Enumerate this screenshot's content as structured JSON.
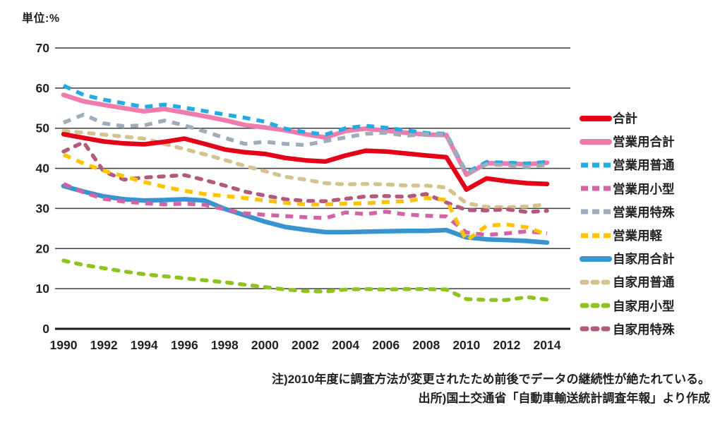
{
  "chart_data": {
    "type": "line",
    "unit_label": "単位:%",
    "x_years": [
      1990,
      1991,
      1992,
      1993,
      1994,
      1995,
      1996,
      1997,
      1998,
      1999,
      2000,
      2001,
      2002,
      2003,
      2004,
      2005,
      2006,
      2007,
      2008,
      2009,
      2010,
      2011,
      2012,
      2013,
      2014
    ],
    "x_tick_labels": [
      "1990",
      "1992",
      "1994",
      "1996",
      "1998",
      "2000",
      "2002",
      "2004",
      "2006",
      "2008",
      "2010",
      "2012",
      "2014"
    ],
    "ylim": [
      0,
      70
    ],
    "yticks": [
      0,
      10,
      20,
      30,
      40,
      50,
      60,
      70
    ],
    "grid": "horizontal",
    "legend_position": "right",
    "axis_color": "#231f20",
    "series": [
      {
        "name": "合計",
        "color": "#e50019",
        "line": "solid",
        "values": [
          48.5,
          47.6,
          46.7,
          46.2,
          46.0,
          46.6,
          47.4,
          46.1,
          44.7,
          44.0,
          43.6,
          42.6,
          42.0,
          41.7,
          43.2,
          44.4,
          44.2,
          43.7,
          43.2,
          42.8,
          34.7,
          37.5,
          36.8,
          36.3,
          36.1
        ]
      },
      {
        "name": "営業用合計",
        "color": "#f07cab",
        "line": "solid",
        "values": [
          58.3,
          56.7,
          55.8,
          55.0,
          54.2,
          54.8,
          53.9,
          53.0,
          52.0,
          50.8,
          50.2,
          49.5,
          48.5,
          47.7,
          49.3,
          49.9,
          49.4,
          48.9,
          48.4,
          48.3,
          38.4,
          41.3,
          41.2,
          41.0,
          41.4
        ]
      },
      {
        "name": "営業用普通",
        "color": "#23ace2",
        "line": "dash",
        "values": [
          60.6,
          58.3,
          57.1,
          56.2,
          55.3,
          55.9,
          55.1,
          54.3,
          53.4,
          52.6,
          51.6,
          49.9,
          49.0,
          48.4,
          50.0,
          50.6,
          50.1,
          49.5,
          48.8,
          48.6,
          38.9,
          41.6,
          41.4,
          41.2,
          41.6
        ]
      },
      {
        "name": "営業用小型",
        "color": "#d264a5",
        "line": "dash",
        "values": [
          36.1,
          34.0,
          32.4,
          31.7,
          31.3,
          31.0,
          31.2,
          30.9,
          29.8,
          28.8,
          28.4,
          28.1,
          27.8,
          27.6,
          29.0,
          28.6,
          29.2,
          28.5,
          28.2,
          28.0,
          24.0,
          23.4,
          23.8,
          24.3,
          23.8
        ]
      },
      {
        "name": "営業用特殊",
        "color": "#9fadbb",
        "line": "dash",
        "values": [
          51.4,
          53.4,
          51.2,
          50.5,
          50.7,
          51.9,
          50.7,
          49.2,
          47.6,
          46.1,
          46.6,
          46.1,
          45.8,
          46.8,
          47.7,
          48.6,
          48.9,
          48.1,
          48.6,
          48.4,
          38.7,
          41.0,
          40.8,
          40.4,
          40.9
        ]
      },
      {
        "name": "営業用軽",
        "color": "#ffc400",
        "line": "dash",
        "values": [
          43.4,
          41.2,
          39.4,
          38.0,
          36.6,
          35.4,
          34.4,
          33.6,
          33.1,
          32.6,
          32.0,
          31.4,
          31.0,
          31.0,
          31.2,
          31.3,
          31.6,
          31.8,
          32.6,
          32.1,
          22.0,
          25.7,
          26.0,
          25.3,
          23.5
        ]
      },
      {
        "name": "自家用合計",
        "color": "#3794d0",
        "line": "solid",
        "values": [
          35.6,
          34.2,
          33.0,
          32.3,
          32.0,
          32.1,
          32.3,
          32.0,
          29.9,
          28.3,
          26.7,
          25.4,
          24.7,
          24.1,
          24.1,
          24.2,
          24.3,
          24.4,
          24.4,
          24.6,
          22.8,
          22.3,
          22.1,
          21.9,
          21.5
        ]
      },
      {
        "name": "自家用普通",
        "color": "#d5c28e",
        "line": "round-dash",
        "values": [
          49.3,
          48.9,
          48.4,
          47.9,
          47.4,
          46.1,
          44.8,
          43.5,
          42.1,
          40.6,
          39.3,
          37.9,
          37.2,
          36.3,
          36.0,
          36.1,
          36.0,
          35.7,
          35.7,
          35.2,
          31.3,
          30.4,
          30.3,
          30.5,
          31.0
        ]
      },
      {
        "name": "自家用小型",
        "color": "#8fc31f",
        "line": "round-dash",
        "values": [
          17.0,
          15.9,
          15.1,
          14.3,
          13.6,
          13.1,
          12.6,
          12.1,
          11.6,
          11.0,
          10.4,
          9.8,
          9.4,
          9.3,
          9.8,
          9.9,
          9.8,
          9.9,
          9.9,
          9.8,
          7.4,
          7.2,
          7.2,
          7.9,
          7.3
        ]
      },
      {
        "name": "自家用特殊",
        "color": "#b25a7d",
        "line": "round-dash",
        "values": [
          44.2,
          46.5,
          39.2,
          37.2,
          37.7,
          38.0,
          38.3,
          37.1,
          35.7,
          34.2,
          33.2,
          32.3,
          31.9,
          31.8,
          32.4,
          33.0,
          33.1,
          32.9,
          33.6,
          31.5,
          29.6,
          29.5,
          29.8,
          29.1,
          29.4
        ]
      }
    ],
    "notes": [
      "注)2010年度に調査方法が変更されたため前後でデータの継続性が絶たれている。",
      "出所)国土交通省「自動車輸送統計調査年報」より作成"
    ]
  }
}
